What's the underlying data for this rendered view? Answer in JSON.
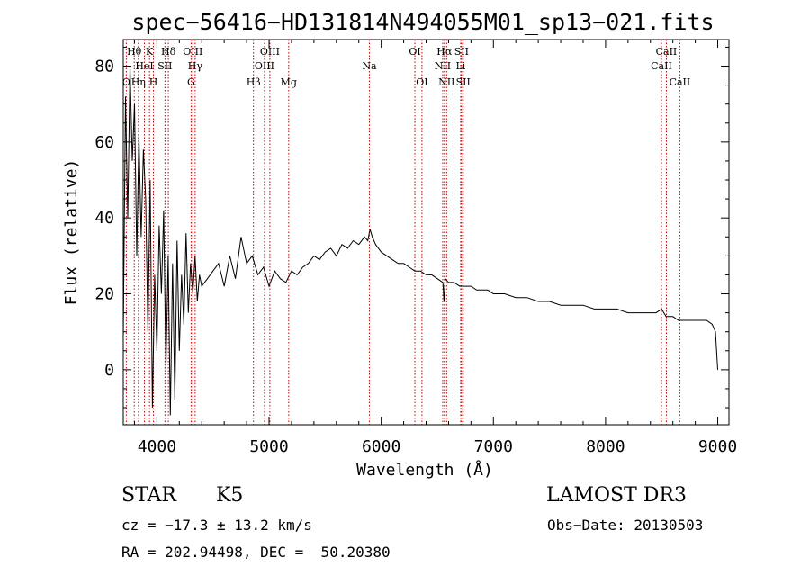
{
  "chart_data": {
    "type": "line",
    "title": "spec−56416−HD131814N494055M01_sp13−021.fits",
    "xlabel": "Wavelength (Å)",
    "ylabel": "Flux (relative)",
    "xlim": [
      3700,
      9100
    ],
    "ylim": [
      -14.5,
      87
    ],
    "xticks": [
      4000,
      5000,
      6000,
      7000,
      8000,
      9000
    ],
    "xtick_labels": [
      "4000",
      "5000",
      "6000",
      "7000",
      "8000",
      "9000"
    ],
    "yticks": [
      0,
      20,
      40,
      60,
      80
    ],
    "ytick_labels": [
      "0",
      "20",
      "40",
      "60",
      "80"
    ],
    "grid": false,
    "series": [
      {
        "name": "flux",
        "x": [
          3700,
          3720,
          3740,
          3760,
          3780,
          3800,
          3820,
          3840,
          3860,
          3880,
          3900,
          3920,
          3940,
          3960,
          3980,
          4000,
          4020,
          4040,
          4060,
          4080,
          4100,
          4120,
          4140,
          4160,
          4180,
          4200,
          4220,
          4240,
          4260,
          4280,
          4300,
          4320,
          4340,
          4360,
          4380,
          4400,
          4450,
          4500,
          4550,
          4600,
          4650,
          4700,
          4750,
          4800,
          4850,
          4900,
          4950,
          5000,
          5050,
          5100,
          5150,
          5200,
          5250,
          5300,
          5350,
          5400,
          5450,
          5500,
          5550,
          5600,
          5650,
          5700,
          5750,
          5800,
          5850,
          5880,
          5900,
          5920,
          5950,
          6000,
          6050,
          6100,
          6150,
          6200,
          6250,
          6300,
          6350,
          6400,
          6450,
          6500,
          6550,
          6560,
          6563,
          6570,
          6600,
          6650,
          6700,
          6750,
          6800,
          6850,
          6900,
          6950,
          7000,
          7100,
          7200,
          7300,
          7400,
          7500,
          7600,
          7700,
          7800,
          7900,
          8000,
          8100,
          8200,
          8300,
          8400,
          8450,
          8500,
          8520,
          8540,
          8560,
          8600,
          8650,
          8700,
          8750,
          8800,
          8850,
          8900,
          8950,
          8980,
          9000
        ],
        "y": [
          8,
          72,
          40,
          80,
          55,
          70,
          30,
          62,
          35,
          58,
          45,
          10,
          50,
          -10,
          25,
          5,
          38,
          20,
          42,
          0,
          30,
          -12,
          28,
          -8,
          34,
          5,
          25,
          12,
          36,
          15,
          28,
          20,
          30,
          18,
          25,
          22,
          24,
          26,
          28,
          22,
          30,
          24,
          35,
          28,
          30,
          25,
          27,
          22,
          26,
          24,
          23,
          26,
          25,
          27,
          28,
          30,
          29,
          31,
          32,
          30,
          33,
          32,
          34,
          33,
          35,
          34,
          37,
          35,
          33,
          31,
          30,
          29,
          28,
          28,
          27,
          26,
          26,
          25,
          25,
          24,
          23,
          18,
          20,
          24,
          23,
          23,
          22,
          22,
          22,
          21,
          21,
          21,
          20,
          20,
          19,
          19,
          18,
          18,
          17,
          17,
          17,
          16,
          16,
          16,
          15,
          15,
          15,
          15,
          16,
          15,
          14,
          14,
          14,
          13,
          13,
          13,
          13,
          13,
          13,
          12,
          10,
          0
        ]
      }
    ],
    "lines": [
      {
        "label": "Hθ",
        "x": 3798,
        "row": 1
      },
      {
        "label": "O",
        "x": 3727,
        "row": 3
      },
      {
        "label": "Hη",
        "x": 3835,
        "row": 3
      },
      {
        "label": "HeI",
        "x": 3889,
        "row": 2
      },
      {
        "label": "K",
        "x": 3934,
        "row": 1
      },
      {
        "label": "H",
        "x": 3969,
        "row": 3
      },
      {
        "label": "SII",
        "x": 4072,
        "row": 2
      },
      {
        "label": "Hδ",
        "x": 4102,
        "row": 1
      },
      {
        "label": "OIII",
        "x": 4320,
        "row": 1
      },
      {
        "label": "Hγ",
        "x": 4341,
        "row": 2
      },
      {
        "label": "G",
        "x": 4305,
        "row": 3
      },
      {
        "label": "Hβ",
        "x": 4861,
        "row": 3
      },
      {
        "label": "OIII",
        "x": 5007,
        "row": 1
      },
      {
        "label": "OIII",
        "x": 4959,
        "row": 2
      },
      {
        "label": "Mg",
        "x": 5175,
        "row": 3
      },
      {
        "label": "Na",
        "x": 5894,
        "row": 2
      },
      {
        "label": "OI",
        "x": 6300,
        "row": 1
      },
      {
        "label": "OI",
        "x": 6363,
        "row": 3
      },
      {
        "label": "Hα",
        "x": 6563,
        "row": 1
      },
      {
        "label": "NII",
        "x": 6548,
        "row": 2
      },
      {
        "label": "NII",
        "x": 6583,
        "row": 3
      },
      {
        "label": "SII",
        "x": 6716,
        "row": 1
      },
      {
        "label": "Li",
        "x": 6708,
        "row": 2
      },
      {
        "label": "SII",
        "x": 6731,
        "row": 3
      },
      {
        "label": "CaII",
        "x": 8542,
        "row": 1
      },
      {
        "label": "CaII",
        "x": 8498,
        "row": 2
      },
      {
        "label": "CaII",
        "x": 8662,
        "row": 3
      }
    ]
  },
  "info": {
    "class": "STAR",
    "subclass": "K5",
    "survey": "LAMOST DR3",
    "cz": "cz = −17.3 ± 13.2 km/s",
    "obs_date": "Obs−Date: 20130503",
    "coords": "RA = 202.94498, DEC =  50.20380"
  },
  "colors": {
    "line_marker": "#c00000",
    "spectrum": "#000000",
    "axes": "#000000"
  }
}
